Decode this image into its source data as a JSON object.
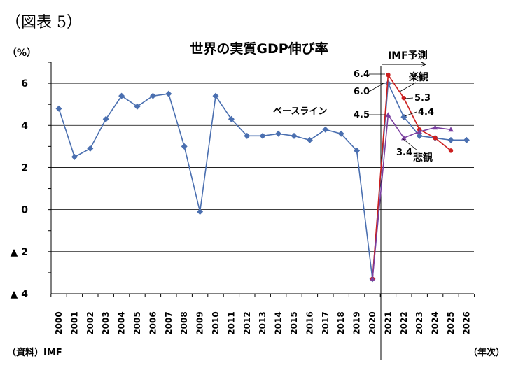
{
  "figure_label": "（図表 5）",
  "source": "（資料）IMF",
  "x_unit": "（年次）",
  "chart_data": {
    "type": "line",
    "title": "世界の実質GDP伸び率",
    "ylabel": "（%）",
    "xlabel": "",
    "ylim": [
      -4,
      7
    ],
    "y_ticks": [
      {
        "value": 6,
        "label": "6"
      },
      {
        "value": 4,
        "label": "4"
      },
      {
        "value": 2,
        "label": "2"
      },
      {
        "value": 0,
        "label": "0"
      },
      {
        "value": -2,
        "label": "▲ 2"
      },
      {
        "value": -4,
        "label": "▲ 4"
      }
    ],
    "grid": true,
    "categories": [
      "2000",
      "2001",
      "2002",
      "2003",
      "2004",
      "2005",
      "2006",
      "2007",
      "2008",
      "2009",
      "2010",
      "2011",
      "2012",
      "2013",
      "2014",
      "2015",
      "2016",
      "2017",
      "2018",
      "2019",
      "2020",
      "2021",
      "2022",
      "2023",
      "2024",
      "2025",
      "2026"
    ],
    "series": [
      {
        "name": "ベースライン",
        "color": "#4a6fb0",
        "marker": "diamond",
        "x": [
          "2000",
          "2001",
          "2002",
          "2003",
          "2004",
          "2005",
          "2006",
          "2007",
          "2008",
          "2009",
          "2010",
          "2011",
          "2012",
          "2013",
          "2014",
          "2015",
          "2016",
          "2017",
          "2018",
          "2019",
          "2020",
          "2021",
          "2022",
          "2023",
          "2024",
          "2025",
          "2026"
        ],
        "values": [
          4.8,
          2.5,
          2.9,
          4.3,
          5.4,
          4.9,
          5.4,
          5.5,
          3.0,
          -0.1,
          5.4,
          4.3,
          3.5,
          3.5,
          3.6,
          3.5,
          3.3,
          3.8,
          3.6,
          2.8,
          -3.3,
          6.0,
          4.4,
          3.5,
          3.4,
          3.3,
          3.3
        ]
      },
      {
        "name": "楽観",
        "color": "#cc1f1f",
        "marker": "circle",
        "x": [
          "2020",
          "2021",
          "2022",
          "2023",
          "2024",
          "2025"
        ],
        "values": [
          -3.3,
          6.4,
          5.3,
          3.8,
          3.4,
          2.8
        ]
      },
      {
        "name": "悲観",
        "color": "#7a3fa0",
        "marker": "triangle",
        "x": [
          "2020",
          "2021",
          "2022",
          "2023",
          "2024",
          "2025"
        ],
        "values": [
          -3.3,
          4.5,
          3.4,
          3.7,
          3.9,
          3.8
        ]
      }
    ],
    "annotations": {
      "imf_forecast": "IMF予測",
      "baseline_label": "ベースライン",
      "optimistic_label": "楽観",
      "pessimistic_label": "悲観",
      "v64": "6.4",
      "v60": "6.0",
      "v45": "4.5",
      "v53": "5.3",
      "v44": "4.4",
      "v34": "3.4"
    }
  }
}
